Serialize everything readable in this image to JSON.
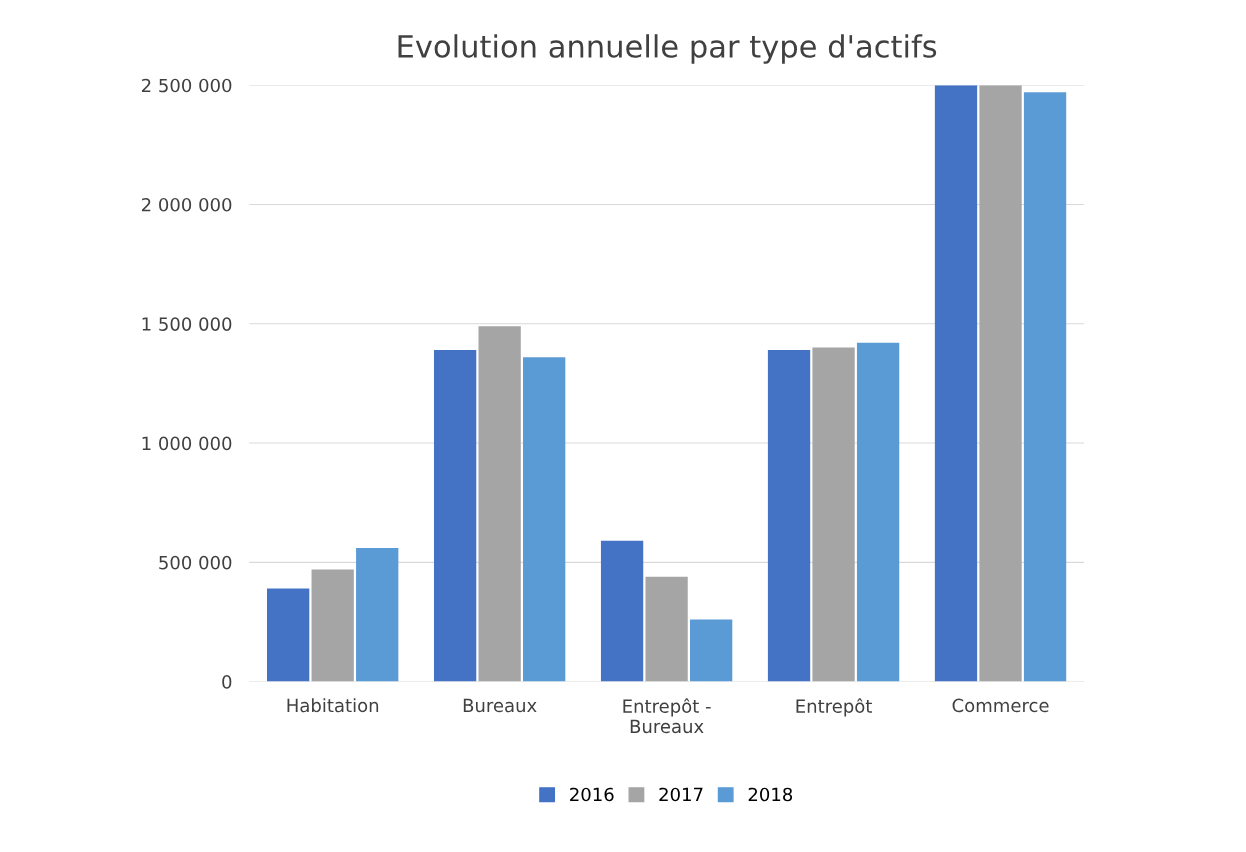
{
  "chart_data": {
    "type": "bar",
    "title": "Evolution annuelle par type d'actifs",
    "categories": [
      "Habitation",
      "Bureaux",
      "Entrepôt -\nBureaux",
      "Entrepôt",
      "Commerce"
    ],
    "series": [
      {
        "name": "2016",
        "color": "#4472c4",
        "values": [
          390000,
          1390000,
          590000,
          1390000,
          2500000
        ]
      },
      {
        "name": "2017",
        "color": "#a5a5a5",
        "values": [
          470000,
          1490000,
          440000,
          1400000,
          2500000
        ]
      },
      {
        "name": "2018",
        "color": "#5b9bd5",
        "values": [
          560000,
          1360000,
          260000,
          1420000,
          2470000
        ]
      }
    ],
    "ylim": [
      0,
      2500000
    ],
    "yticks": [
      0,
      {
        "value": 500000,
        "label": "500 000"
      },
      {
        "value": 1000000,
        "label": "1 000 000"
      },
      {
        "value": 1500000,
        "label": "1 500 000"
      },
      {
        "value": 2000000,
        "label": "2 000 000"
      },
      {
        "value": 2500000,
        "label": "2 500 000"
      }
    ],
    "grid": "y",
    "legend": "bottom"
  }
}
